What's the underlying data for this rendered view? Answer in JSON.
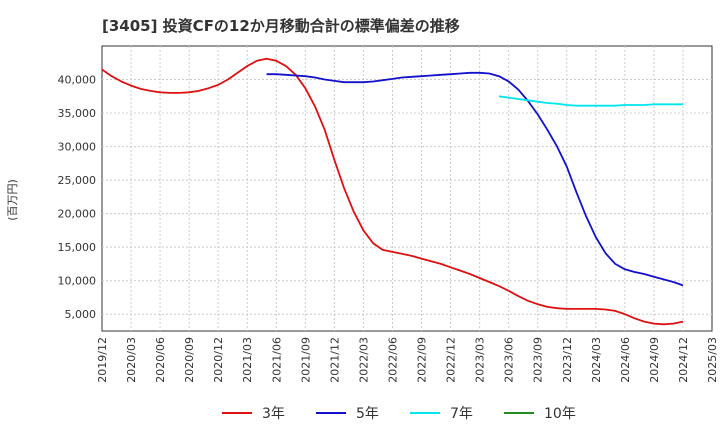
{
  "chart_data": {
    "type": "line",
    "title": "[3405]  投資CFの12か月移動合計の標準偏差の推移",
    "ylabel": "(百万円)",
    "xlabel": "",
    "ylim": [
      2500,
      45000
    ],
    "yticks": [
      5000,
      10000,
      15000,
      20000,
      25000,
      30000,
      35000,
      40000
    ],
    "ytick_labels": [
      "5,000",
      "10,000",
      "15,000",
      "20,000",
      "25,000",
      "30,000",
      "35,000",
      "40,000"
    ],
    "xlim": [
      "2019-12",
      "2025-03"
    ],
    "xtick_labels": [
      "2019/12",
      "2020/03",
      "2020/06",
      "2020/09",
      "2020/12",
      "2021/03",
      "2021/06",
      "2021/09",
      "2021/12",
      "2022/03",
      "2022/06",
      "2022/09",
      "2022/12",
      "2023/03",
      "2023/06",
      "2023/09",
      "2023/12",
      "2024/03",
      "2024/06",
      "2024/09",
      "2024/12",
      "2025/03"
    ],
    "grid": true,
    "legend_position": "bottom",
    "series": [
      {
        "name": "3年",
        "color": "#dd1111",
        "points": [
          [
            "2019-12",
            41500
          ],
          [
            "2020-01",
            40500
          ],
          [
            "2020-02",
            39700
          ],
          [
            "2020-03",
            39100
          ],
          [
            "2020-04",
            38600
          ],
          [
            "2020-05",
            38300
          ],
          [
            "2020-06",
            38100
          ],
          [
            "2020-07",
            38000
          ],
          [
            "2020-08",
            38000
          ],
          [
            "2020-09",
            38100
          ],
          [
            "2020-10",
            38300
          ],
          [
            "2020-11",
            38700
          ],
          [
            "2020-12",
            39200
          ],
          [
            "2021-01",
            40000
          ],
          [
            "2021-02",
            41000
          ],
          [
            "2021-03",
            42000
          ],
          [
            "2021-04",
            42800
          ],
          [
            "2021-05",
            43100
          ],
          [
            "2021-06",
            42800
          ],
          [
            "2021-07",
            42000
          ],
          [
            "2021-08",
            40700
          ],
          [
            "2021-09",
            38700
          ],
          [
            "2021-10",
            36000
          ],
          [
            "2021-11",
            32500
          ],
          [
            "2021-12",
            28000
          ],
          [
            "2022-01",
            23800
          ],
          [
            "2022-02",
            20300
          ],
          [
            "2022-03",
            17500
          ],
          [
            "2022-04",
            15600
          ],
          [
            "2022-05",
            14600
          ],
          [
            "2022-06",
            14300
          ],
          [
            "2022-07",
            14000
          ],
          [
            "2022-08",
            13700
          ],
          [
            "2022-09",
            13300
          ],
          [
            "2022-10",
            12900
          ],
          [
            "2022-11",
            12500
          ],
          [
            "2022-12",
            12000
          ],
          [
            "2023-01",
            11500
          ],
          [
            "2023-02",
            11000
          ],
          [
            "2023-03",
            10400
          ],
          [
            "2023-04",
            9800
          ],
          [
            "2023-05",
            9200
          ],
          [
            "2023-06",
            8500
          ],
          [
            "2023-07",
            7700
          ],
          [
            "2023-08",
            7000
          ],
          [
            "2023-09",
            6500
          ],
          [
            "2023-10",
            6100
          ],
          [
            "2023-11",
            5900
          ],
          [
            "2023-12",
            5800
          ],
          [
            "2024-01",
            5800
          ],
          [
            "2024-02",
            5800
          ],
          [
            "2024-03",
            5800
          ],
          [
            "2024-04",
            5700
          ],
          [
            "2024-05",
            5500
          ],
          [
            "2024-06",
            5000
          ],
          [
            "2024-07",
            4400
          ],
          [
            "2024-08",
            3900
          ],
          [
            "2024-09",
            3600
          ],
          [
            "2024-10",
            3500
          ],
          [
            "2024-11",
            3600
          ],
          [
            "2024-12",
            3900
          ]
        ]
      },
      {
        "name": "5年",
        "color": "#1111cc",
        "points": [
          [
            "2021-05",
            40800
          ],
          [
            "2021-06",
            40800
          ],
          [
            "2021-07",
            40700
          ],
          [
            "2021-08",
            40600
          ],
          [
            "2021-09",
            40500
          ],
          [
            "2021-10",
            40300
          ],
          [
            "2021-11",
            40000
          ],
          [
            "2021-12",
            39800
          ],
          [
            "2022-01",
            39600
          ],
          [
            "2022-02",
            39600
          ],
          [
            "2022-03",
            39600
          ],
          [
            "2022-04",
            39700
          ],
          [
            "2022-05",
            39900
          ],
          [
            "2022-06",
            40100
          ],
          [
            "2022-07",
            40300
          ],
          [
            "2022-08",
            40400
          ],
          [
            "2022-09",
            40500
          ],
          [
            "2022-10",
            40600
          ],
          [
            "2022-11",
            40700
          ],
          [
            "2022-12",
            40800
          ],
          [
            "2023-01",
            40900
          ],
          [
            "2023-02",
            41000
          ],
          [
            "2023-03",
            41000
          ],
          [
            "2023-04",
            40900
          ],
          [
            "2023-05",
            40500
          ],
          [
            "2023-06",
            39700
          ],
          [
            "2023-07",
            38500
          ],
          [
            "2023-08",
            36800
          ],
          [
            "2023-09",
            34800
          ],
          [
            "2023-10",
            32500
          ],
          [
            "2023-11",
            30000
          ],
          [
            "2023-12",
            27000
          ],
          [
            "2024-01",
            23200
          ],
          [
            "2024-02",
            19600
          ],
          [
            "2024-03",
            16500
          ],
          [
            "2024-04",
            14100
          ],
          [
            "2024-05",
            12500
          ],
          [
            "2024-06",
            11700
          ],
          [
            "2024-07",
            11300
          ],
          [
            "2024-08",
            11000
          ],
          [
            "2024-09",
            10600
          ],
          [
            "2024-10",
            10200
          ],
          [
            "2024-11",
            9800
          ],
          [
            "2024-12",
            9300
          ]
        ]
      },
      {
        "name": "7年",
        "color": "#00e5ee",
        "points": [
          [
            "2023-05",
            37500
          ],
          [
            "2023-06",
            37300
          ],
          [
            "2023-07",
            37100
          ],
          [
            "2023-08",
            36900
          ],
          [
            "2023-09",
            36700
          ],
          [
            "2023-10",
            36500
          ],
          [
            "2023-11",
            36400
          ],
          [
            "2023-12",
            36200
          ],
          [
            "2024-01",
            36100
          ],
          [
            "2024-02",
            36100
          ],
          [
            "2024-03",
            36100
          ],
          [
            "2024-04",
            36100
          ],
          [
            "2024-05",
            36100
          ],
          [
            "2024-06",
            36200
          ],
          [
            "2024-07",
            36200
          ],
          [
            "2024-08",
            36200
          ],
          [
            "2024-09",
            36300
          ],
          [
            "2024-10",
            36300
          ],
          [
            "2024-11",
            36300
          ],
          [
            "2024-12",
            36300
          ]
        ]
      },
      {
        "name": "10年",
        "color": "#228b22",
        "points": []
      }
    ]
  }
}
